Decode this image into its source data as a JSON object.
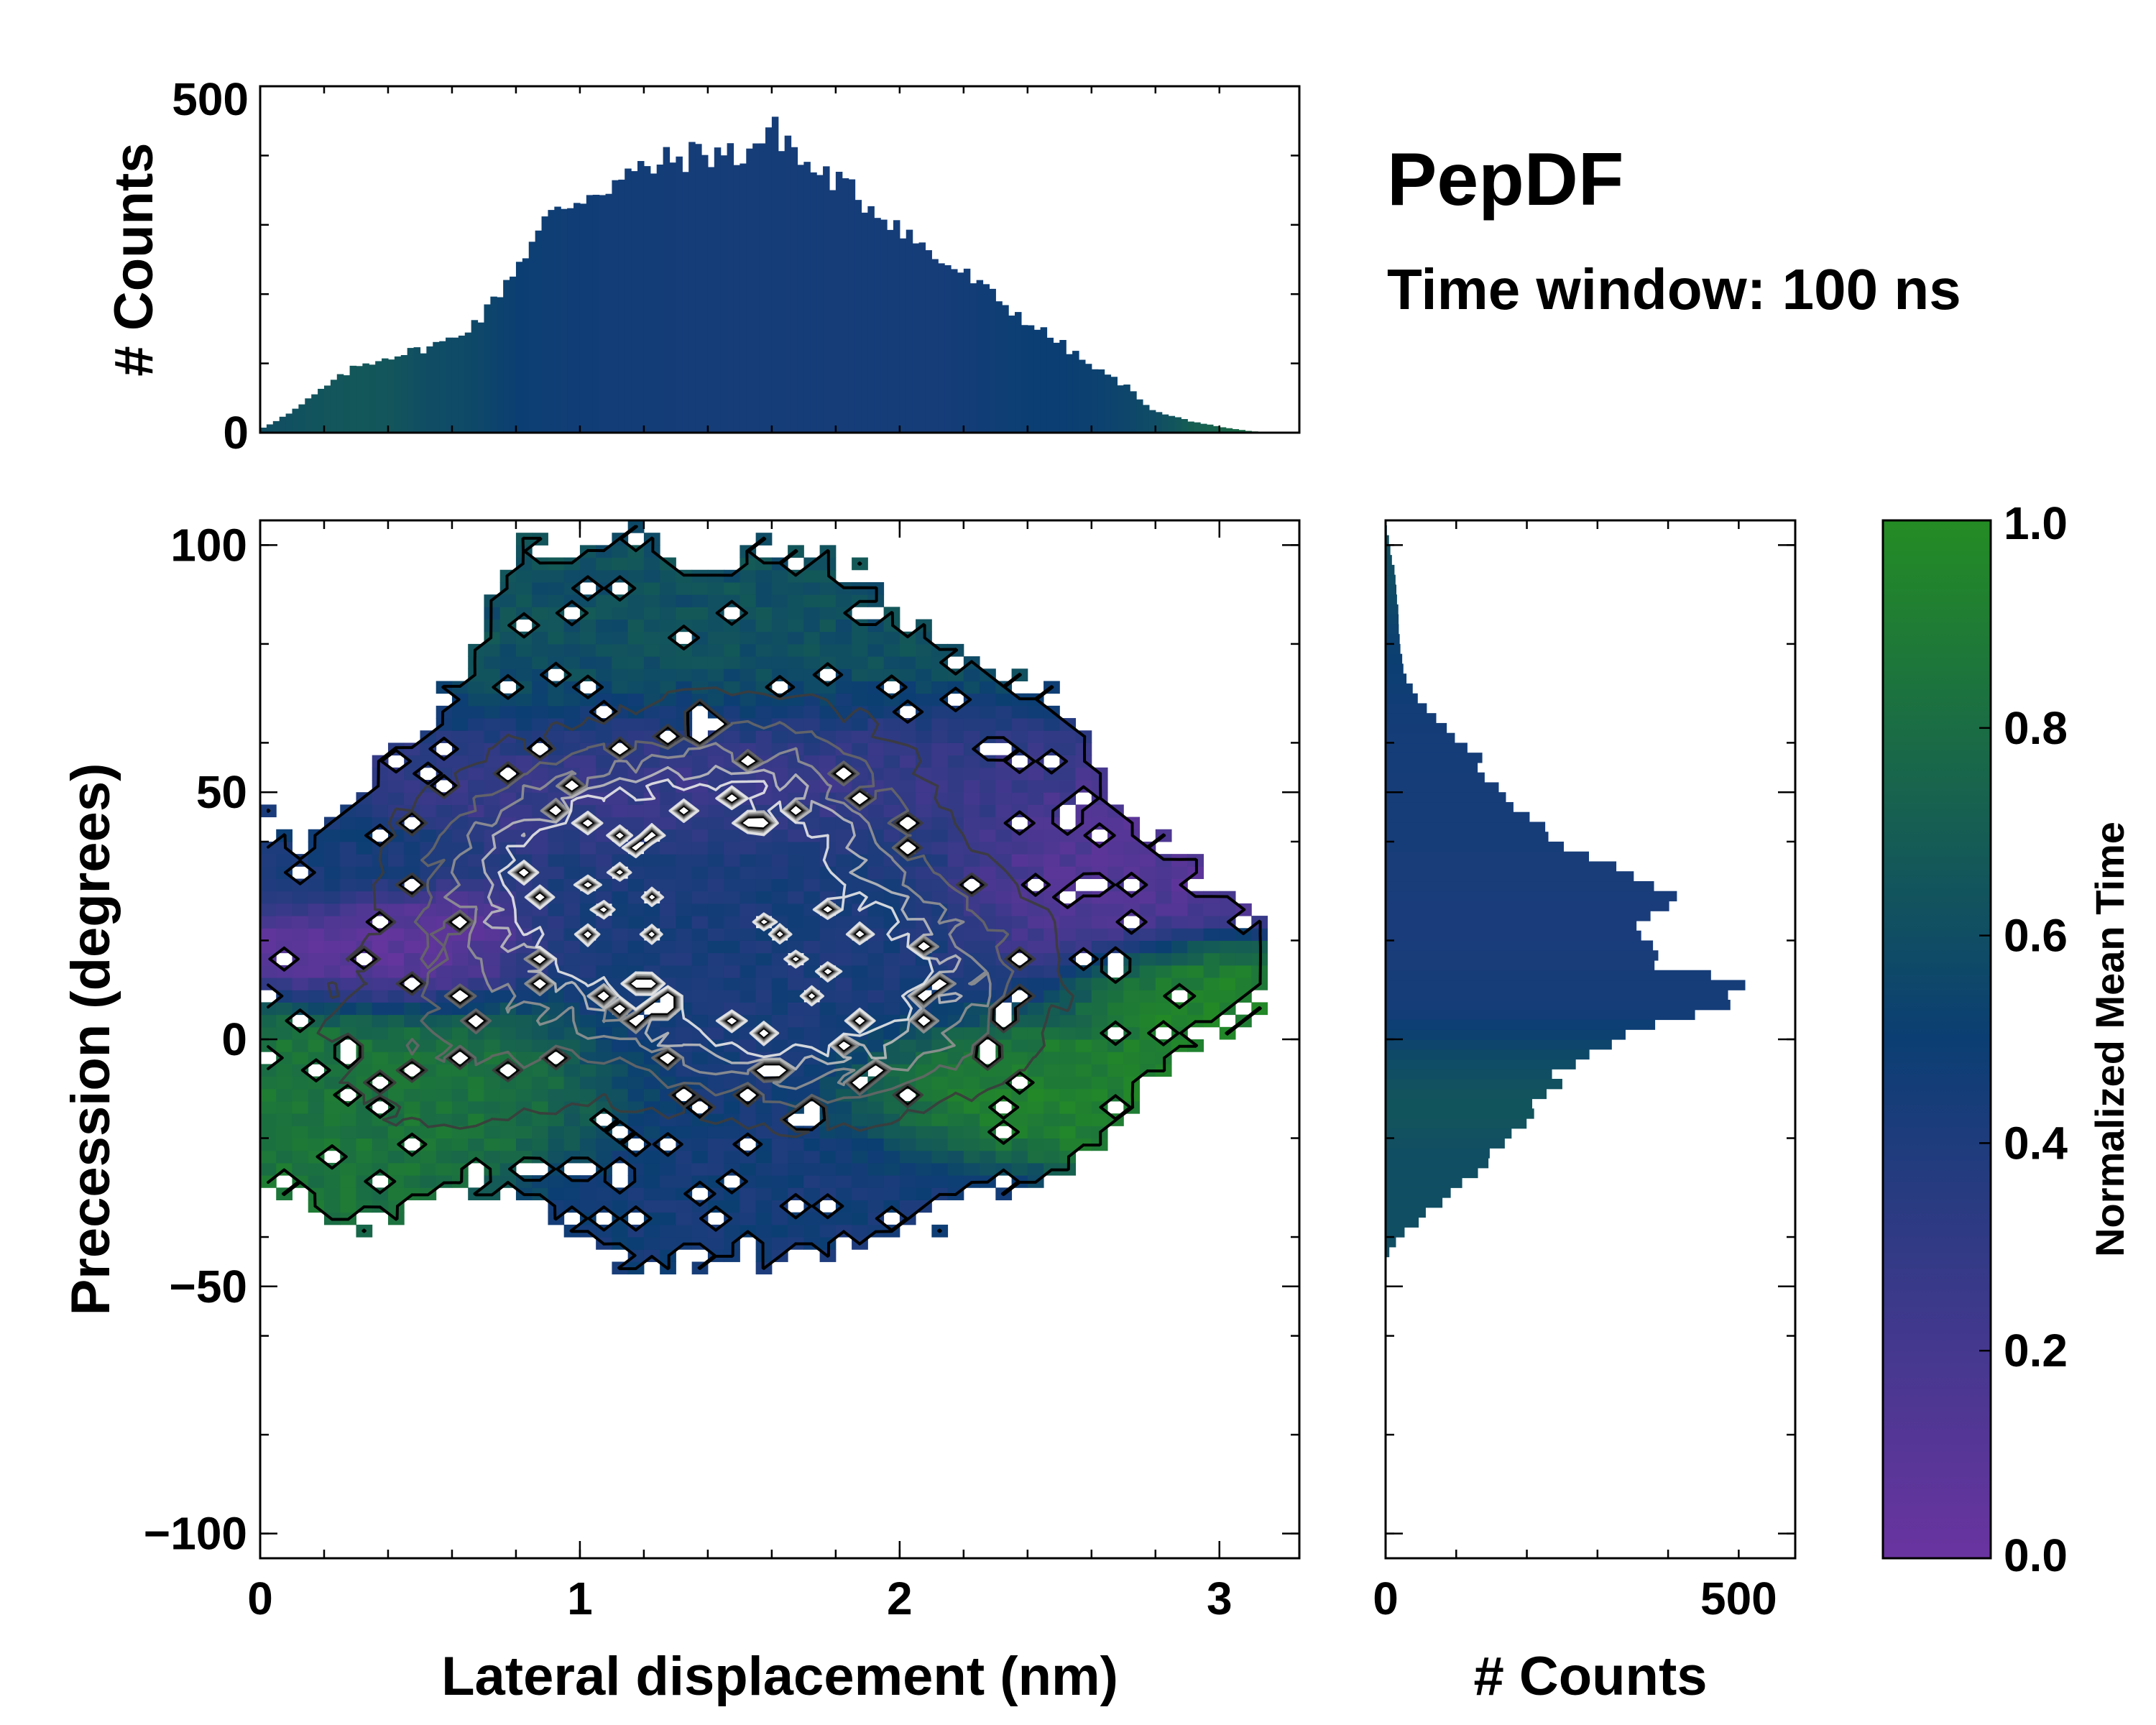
{
  "header": {
    "title": "PepDF",
    "subtitle": "Time window: 100 ns"
  },
  "colors": {
    "low": "#6a34a0",
    "mid": "#0b3e73",
    "high": "#248c24",
    "contour_dark": "#111111",
    "contour_light": "#e8e8e8"
  },
  "chart_data": [
    {
      "id": "top-histogram",
      "type": "bar",
      "title": "",
      "xlabel": "",
      "ylabel": "# Counts",
      "xlim": [
        0,
        3.25
      ],
      "ylim": [
        0,
        500
      ],
      "yticks": [
        0,
        500
      ],
      "bin_width": 0.02,
      "x": [
        0.0,
        0.1,
        0.2,
        0.3,
        0.4,
        0.5,
        0.6,
        0.7,
        0.8,
        0.9,
        1.0,
        1.1,
        1.2,
        1.3,
        1.4,
        1.5,
        1.6,
        1.65,
        1.7,
        1.8,
        1.9,
        2.0,
        2.1,
        2.2,
        2.3,
        2.4,
        2.5,
        2.6,
        2.7,
        2.8,
        2.9,
        3.0,
        3.1,
        3.2
      ],
      "values": [
        5,
        30,
        65,
        95,
        110,
        120,
        135,
        170,
        240,
        310,
        340,
        360,
        380,
        395,
        405,
        400,
        435,
        425,
        385,
        365,
        330,
        300,
        255,
        230,
        195,
        160,
        130,
        95,
        70,
        30,
        18,
        8,
        2,
        0
      ],
      "color_values": [
        0.6,
        0.62,
        0.65,
        0.66,
        0.65,
        0.6,
        0.58,
        0.55,
        0.5,
        0.48,
        0.47,
        0.46,
        0.46,
        0.45,
        0.45,
        0.44,
        0.45,
        0.44,
        0.45,
        0.44,
        0.45,
        0.45,
        0.44,
        0.46,
        0.48,
        0.5,
        0.5,
        0.52,
        0.55,
        0.6,
        0.7,
        0.75,
        0.8,
        0.8
      ]
    },
    {
      "id": "right-histogram",
      "type": "bar",
      "orientation": "horizontal",
      "title": "",
      "xlabel": "# Counts",
      "ylabel": "",
      "xlim": [
        0,
        580
      ],
      "ylim": [
        -105,
        105
      ],
      "xticks": [
        0,
        500
      ],
      "bin_width": 2,
      "y": [
        -43,
        -40,
        -35,
        -30,
        -25,
        -20,
        -15,
        -10,
        -5,
        0,
        5,
        10,
        12,
        15,
        20,
        25,
        30,
        35,
        40,
        45,
        50,
        55,
        60,
        65,
        70,
        75,
        80,
        85,
        90,
        95,
        100,
        103
      ],
      "values": [
        5,
        20,
        60,
        100,
        140,
        180,
        200,
        230,
        260,
        330,
        420,
        520,
        480,
        400,
        350,
        390,
        420,
        320,
        250,
        200,
        160,
        140,
        110,
        70,
        40,
        25,
        20,
        18,
        16,
        12,
        6,
        2
      ],
      "color_values": [
        0.6,
        0.6,
        0.6,
        0.6,
        0.6,
        0.62,
        0.65,
        0.62,
        0.58,
        0.52,
        0.45,
        0.44,
        0.44,
        0.43,
        0.42,
        0.42,
        0.43,
        0.43,
        0.44,
        0.44,
        0.44,
        0.45,
        0.45,
        0.46,
        0.48,
        0.5,
        0.52,
        0.55,
        0.58,
        0.6,
        0.62,
        0.6
      ]
    },
    {
      "id": "main-map",
      "type": "heatmap",
      "title": "",
      "xlabel": "Lateral displacement (nm)",
      "ylabel": "Precession (degrees)",
      "xlim": [
        0,
        3.25
      ],
      "ylim": [
        -105,
        105
      ],
      "xticks": [
        0,
        1,
        2,
        3
      ],
      "xtick_labels": [
        "0",
        "1",
        "2",
        "3"
      ],
      "yticks": [
        100,
        50,
        0,
        -50,
        -100
      ],
      "ytick_labels": [
        "100",
        "50",
        "0",
        "−50",
        "−100"
      ],
      "bin_x": 0.05,
      "bin_y": 2.5,
      "boundary_x": [
        0.0,
        0.1,
        0.2,
        0.3,
        0.4,
        0.5,
        0.6,
        0.7,
        0.8,
        0.9,
        1.0,
        1.1,
        1.2,
        1.3,
        1.4,
        1.5,
        1.6,
        1.7,
        1.8,
        1.9,
        2.0,
        2.1,
        2.2,
        2.3,
        2.4,
        2.5,
        2.6,
        2.7,
        2.8,
        2.9,
        3.0,
        3.1,
        3.2
      ],
      "boundary_top": [
        45,
        40,
        40,
        50,
        58,
        62,
        72,
        85,
        98,
        100,
        100,
        102,
        100,
        98,
        97,
        99,
        98,
        100,
        96,
        92,
        85,
        80,
        78,
        72,
        72,
        70,
        60,
        45,
        40,
        35,
        30,
        22,
        16
      ],
      "boundary_bottom": [
        -30,
        -33,
        -36,
        -38,
        -35,
        -32,
        -32,
        -31,
        -30,
        -35,
        -40,
        -44,
        -45,
        -45,
        -45,
        -44,
        -45,
        -44,
        -42,
        -40,
        -38,
        -37,
        -35,
        -32,
        -30,
        -28,
        -22,
        -18,
        -8,
        -2,
        2,
        6,
        10
      ],
      "regions": [
        {
          "name": "teal upper",
          "cx": 1.3,
          "cy": 85,
          "rx": 0.7,
          "ry": 20,
          "value": 0.62,
          "weight": 1.4
        },
        {
          "name": "purple upper band",
          "cx": 1.4,
          "cy": 55,
          "rx": 0.7,
          "ry": 12,
          "value": 0.22,
          "weight": 0.9
        },
        {
          "name": "purple right",
          "cx": 2.7,
          "cy": 30,
          "rx": 0.35,
          "ry": 12,
          "value": 0.12,
          "weight": 1.6
        },
        {
          "name": "purple left",
          "cx": 0.4,
          "cy": 18,
          "rx": 0.3,
          "ry": 9,
          "value": 0.05,
          "weight": 1.5
        },
        {
          "name": "navy left",
          "cx": 0.25,
          "cy": 35,
          "rx": 0.25,
          "ry": 8,
          "value": 0.45,
          "weight": 1.2
        },
        {
          "name": "green lower left",
          "cx": 0.4,
          "cy": -10,
          "rx": 0.5,
          "ry": 15,
          "value": 0.85,
          "weight": 1.2
        },
        {
          "name": "green lower right",
          "cx": 2.3,
          "cy": -10,
          "rx": 0.35,
          "ry": 10,
          "value": 0.95,
          "weight": 1.3
        },
        {
          "name": "green far right",
          "cx": 2.9,
          "cy": 12,
          "rx": 0.25,
          "ry": 8,
          "value": 0.97,
          "weight": 1.3
        },
        {
          "name": "blue center",
          "cx": 1.6,
          "cy": 15,
          "rx": 0.6,
          "ry": 25,
          "value": 0.42,
          "weight": 1.0
        },
        {
          "name": "navy bottom",
          "cx": 1.6,
          "cy": -30,
          "rx": 0.55,
          "ry": 12,
          "value": 0.45,
          "weight": 1.0
        }
      ],
      "density_peaks": [
        {
          "cx": 1.0,
          "cy": 34,
          "amplitude": 1.0
        },
        {
          "cx": 1.35,
          "cy": 24,
          "amplitude": 0.95
        },
        {
          "cx": 1.6,
          "cy": 10,
          "amplitude": 1.0
        },
        {
          "cx": 1.55,
          "cy": 46,
          "amplitude": 0.7
        },
        {
          "cx": 2.0,
          "cy": 12,
          "amplitude": 0.6
        },
        {
          "cx": 0.6,
          "cy": 0,
          "amplitude": 0.35
        }
      ]
    },
    {
      "id": "colorbar",
      "type": "colorbar",
      "label": "Normalized Mean Time",
      "range": [
        0.0,
        1.0
      ],
      "ticks": [
        0.0,
        0.2,
        0.4,
        0.6,
        0.8,
        1.0
      ],
      "tick_labels": [
        "0.0",
        "0.2",
        "0.4",
        "0.6",
        "0.8",
        "1.0"
      ]
    }
  ]
}
